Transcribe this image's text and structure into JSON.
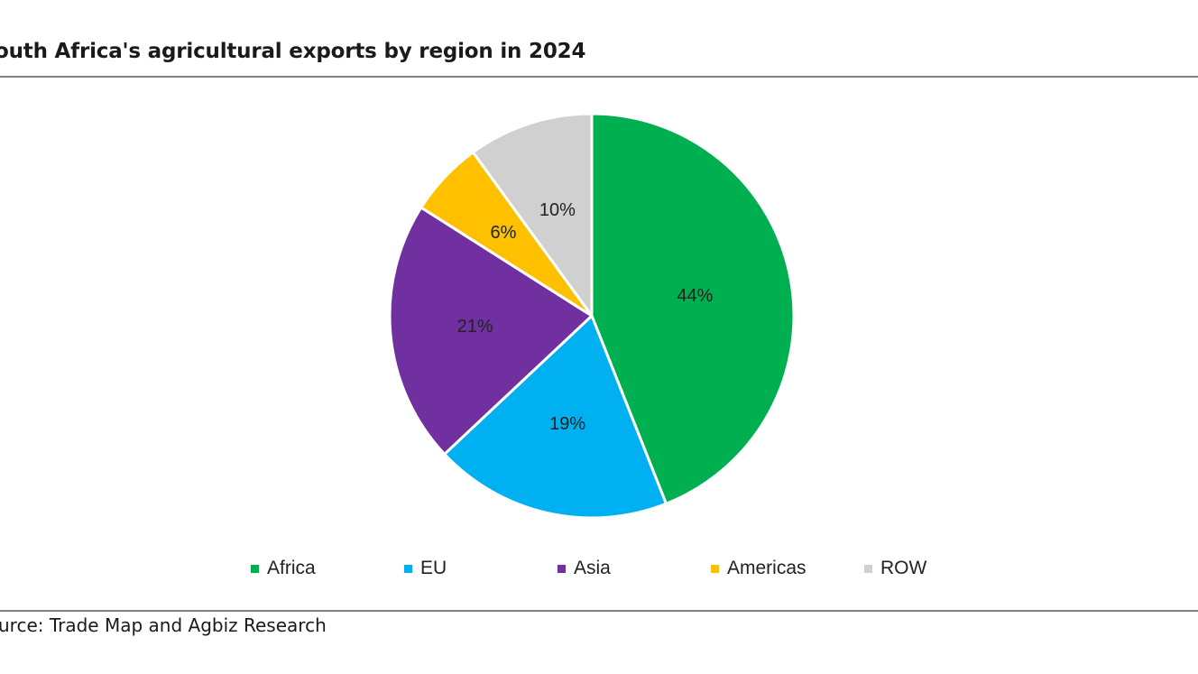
{
  "title": "outh Africa's agricultural exports by region in 2024",
  "source": "urce: Trade Map and Agbiz Research",
  "chart_data": {
    "type": "pie",
    "title": "outh Africa's agricultural exports by region in 2024",
    "labels": [
      "Africa",
      "EU",
      "Asia",
      "Americas",
      "ROW"
    ],
    "values": [
      44,
      19,
      21,
      6,
      10
    ],
    "value_labels": [
      "44%",
      "19%",
      "21%",
      "6%",
      "10%"
    ],
    "colors": [
      "#00b050",
      "#00b0f0",
      "#7030a0",
      "#ffc000",
      "#d0d0d0"
    ],
    "start": "12 o'clock",
    "direction": "clockwise",
    "legend": "bottom"
  }
}
